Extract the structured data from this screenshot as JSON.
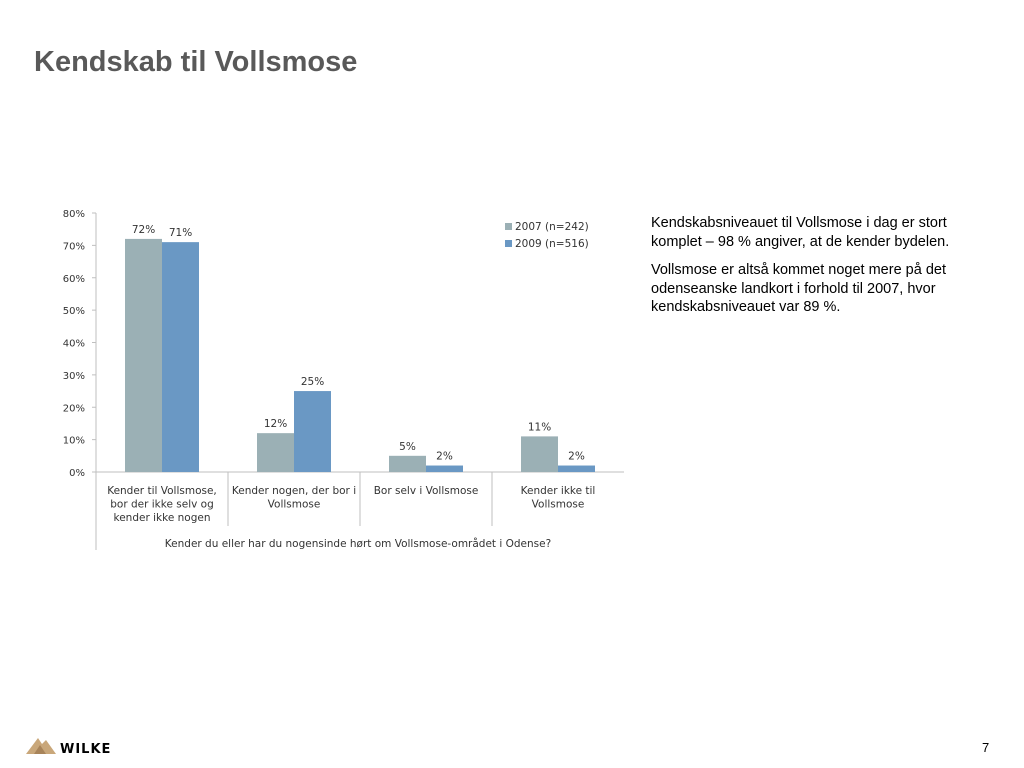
{
  "slide": {
    "title": "Kendskab til Vollsmose",
    "page_number": "7",
    "logo_text": "WILKE"
  },
  "side_text": {
    "paragraphs": [
      "Kendskabsniveauet til Vollsmose i dag er stort komplet – 98 % angiver, at de kender bydelen.",
      "Vollsmose er altså kommet noget mere på det odenseanske landkort i forhold til 2007, hvor kendskabsniveauet var 89 %."
    ]
  },
  "chart_data": {
    "type": "bar",
    "title": "",
    "xlabel": "Kender du eller har du nogensinde hørt om Vollsmose-området i Odense?",
    "ylabel": "",
    "ylim": [
      0,
      80
    ],
    "yticks": [
      "0%",
      "10%",
      "20%",
      "30%",
      "40%",
      "50%",
      "60%",
      "70%",
      "80%"
    ],
    "grid": false,
    "legend_position": "top-right",
    "categories": [
      [
        "Kender til Vollsmose,",
        "bor der ikke selv og",
        "kender ikke nogen"
      ],
      [
        "Kender nogen, der bor i",
        "Vollsmose"
      ],
      [
        "Bor selv i Vollsmose"
      ],
      [
        "Kender ikke til",
        "Vollsmose"
      ]
    ],
    "series": [
      {
        "name": "2007 (n=242)",
        "color": "#9bb0b5",
        "values": [
          72,
          12,
          5,
          11
        ],
        "labels": [
          "72%",
          "12%",
          "5%",
          "11%"
        ]
      },
      {
        "name": "2009 (n=516)",
        "color": "#6a98c4",
        "values": [
          71,
          25,
          2,
          2
        ],
        "labels": [
          "71%",
          "25%",
          "2%",
          "2%"
        ]
      }
    ]
  }
}
